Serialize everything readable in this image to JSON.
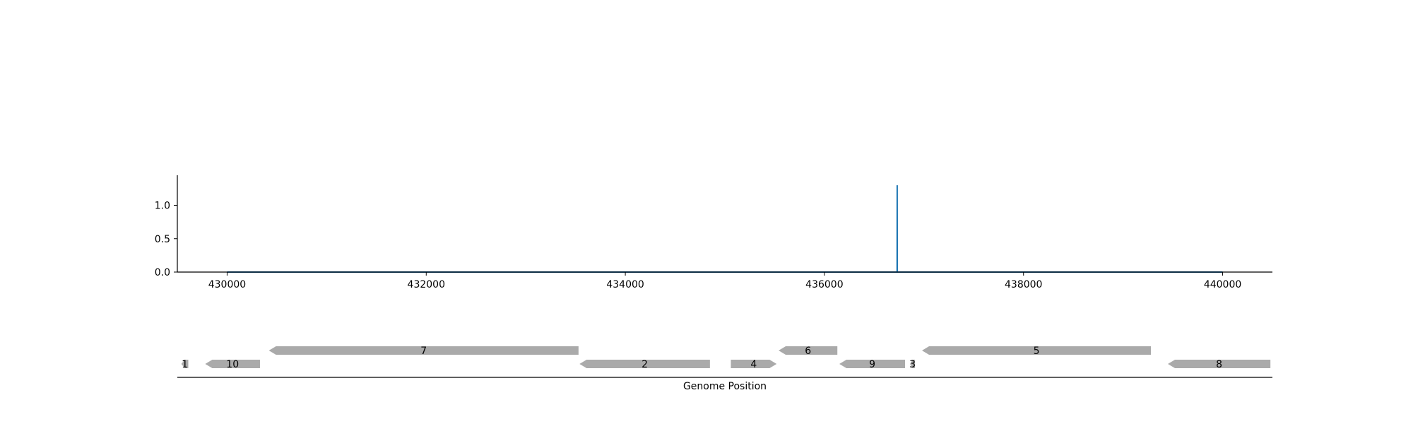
{
  "chart_data": [
    {
      "type": "line",
      "x": [
        430000,
        436730,
        436731,
        436732,
        440000
      ],
      "y": [
        0,
        0,
        1.3,
        0,
        0
      ],
      "xlim": [
        429500,
        440500
      ],
      "ylim": [
        0,
        1.45
      ],
      "xticks": [
        430000,
        432000,
        434000,
        436000,
        438000,
        440000
      ],
      "xtick_labels": [
        "430000",
        "432000",
        "434000",
        "436000",
        "438000",
        "440000"
      ],
      "yticks": [
        0.0,
        0.5,
        1.0
      ],
      "ytick_labels": [
        "0.0",
        "0.5",
        "1.0"
      ],
      "series_color": "#1f77b4",
      "grid": false
    },
    {
      "type": "gene-track",
      "xlabel": "Genome Position",
      "xlim": [
        429500,
        440500
      ],
      "genes": [
        {
          "label": "1",
          "start": 429540,
          "end": 429610,
          "strand": "-",
          "row": 0
        },
        {
          "label": "10",
          "start": 429780,
          "end": 430330,
          "strand": "-",
          "row": 0
        },
        {
          "label": "7",
          "start": 430420,
          "end": 433530,
          "strand": "-",
          "row": 1
        },
        {
          "label": "2",
          "start": 433540,
          "end": 434850,
          "strand": "-",
          "row": 0
        },
        {
          "label": "4",
          "start": 435060,
          "end": 435520,
          "strand": "+",
          "row": 0
        },
        {
          "label": "6",
          "start": 435540,
          "end": 436130,
          "strand": "-",
          "row": 1
        },
        {
          "label": "9",
          "start": 436150,
          "end": 436810,
          "strand": "-",
          "row": 0
        },
        {
          "label": "3",
          "start": 436860,
          "end": 436910,
          "strand": "-",
          "row": 0
        },
        {
          "label": "5",
          "start": 436980,
          "end": 439280,
          "strand": "-",
          "row": 1
        },
        {
          "label": "8",
          "start": 439450,
          "end": 440480,
          "strand": "-",
          "row": 0
        }
      ],
      "gene_color": "#aaaaaa"
    }
  ]
}
